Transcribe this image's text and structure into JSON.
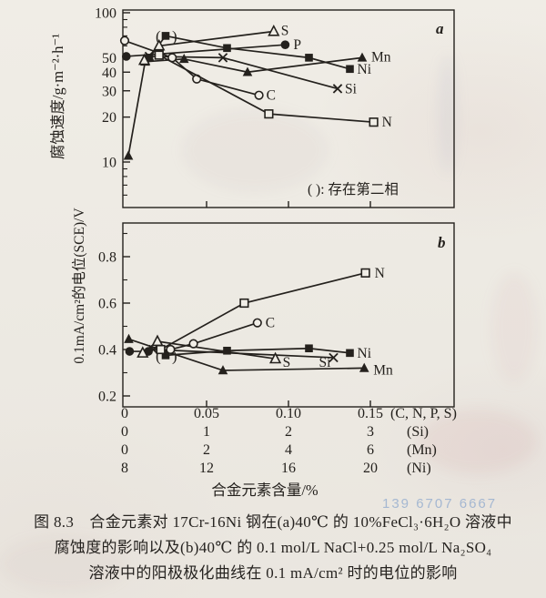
{
  "figure": {
    "caption_lines": [
      "图 8.3　合金元素对 17Cr-16Ni 钢在(a)40℃ 的 10%FeCl₃·6H₂O 溶液中",
      "腐蚀度的影响以及(b)40℃ 的 0.1 mol/L NaCl+0.25 mol/L Na₂SO₄",
      "溶液中的阳极极化曲线在 0.1 mA/cm² 时的电位的影响"
    ],
    "watermark": "139 6707 6667"
  },
  "colors": {
    "ink": "#24211d",
    "paper": "#f1eee7",
    "watermark_blue": "#6c92c6"
  },
  "x_axis": {
    "title": "合金元素含量/%",
    "ranges": {
      "CNPS": [
        0,
        0.2
      ],
      "Si": [
        0,
        4
      ],
      "Mn": [
        0,
        8
      ],
      "Ni": [
        8,
        24
      ]
    },
    "cnps_tick_values": [
      0.05,
      0.1,
      0.15
    ],
    "tick_rows": [
      {
        "axis": "CNPS",
        "labels": [
          "0",
          "0.05",
          "0.10",
          "0.15"
        ],
        "suffix": "(C, N, P, S)"
      },
      {
        "axis": "Si",
        "labels": [
          "0",
          "1",
          "2",
          "3"
        ],
        "suffix": "(Si)"
      },
      {
        "axis": "Mn",
        "labels": [
          "0",
          "2",
          "4",
          "6"
        ],
        "suffix": "(Mn)"
      },
      {
        "axis": "Ni",
        "labels": [
          "8",
          "12",
          "16",
          "20"
        ],
        "suffix": "(Ni)"
      }
    ]
  },
  "chart_data": [
    {
      "id": "a",
      "type": "line",
      "corner_label": "a",
      "ylabel": "腐蚀速度/g·m⁻²·h⁻¹",
      "yscale": "log",
      "ylim": [
        5,
        100
      ],
      "yticks": [
        100,
        50,
        40,
        30,
        20,
        10
      ],
      "yticks_minor": [
        90,
        80,
        70,
        60,
        9,
        8,
        7,
        6
      ],
      "note": "(  ): 存在第二相",
      "series": [
        {
          "name": "Mn",
          "label": "Mn",
          "marker": "triangle-filled",
          "xaxis": "Mn",
          "points": [
            [
              0.09,
              11
            ],
            [
              0.5,
              47
            ],
            [
              1.45,
              49
            ],
            [
              3.0,
              40
            ],
            [
              5.8,
              50
            ]
          ]
        },
        {
          "name": "Si",
          "label": "Si",
          "marker": "x",
          "xaxis": "Si",
          "points": [
            [
              0.3,
              51
            ],
            [
              1.2,
              50
            ],
            [
              2.6,
              31
            ]
          ]
        },
        {
          "name": "Ni",
          "label": "Ni",
          "marker": "square-filled",
          "xaxis": "Ni",
          "points": [
            [
              9.2,
              50
            ],
            [
              10,
              70
            ],
            [
              13,
              58
            ],
            [
              17,
              50
            ],
            [
              19,
              42
            ]
          ],
          "paren_index": 1
        },
        {
          "name": "P",
          "label": "P",
          "marker": "circle-filled",
          "xaxis": "CNPS",
          "points": [
            [
              0.001,
              51
            ],
            [
              0.098,
              61
            ]
          ]
        },
        {
          "name": "C",
          "label": "C",
          "marker": "circle-open",
          "xaxis": "CNPS",
          "points": [
            [
              0.0,
              65
            ],
            [
              0.029,
              50
            ],
            [
              0.044,
              36
            ],
            [
              0.082,
              28
            ]
          ]
        },
        {
          "name": "N",
          "label": "N",
          "marker": "square-open",
          "xaxis": "CNPS",
          "points": [
            [
              0.021,
              52
            ],
            [
              0.088,
              21
            ],
            [
              0.152,
              18.5
            ]
          ]
        },
        {
          "name": "S",
          "label": "S",
          "marker": "triangle-open",
          "xaxis": "CNPS",
          "points": [
            [
              0.012,
              48
            ],
            [
              0.021,
              60
            ],
            [
              0.091,
              75
            ]
          ]
        }
      ]
    },
    {
      "id": "b",
      "type": "line",
      "corner_label": "b",
      "ylabel": "0.1mA/cm²的电位(SCE)/V",
      "yscale": "linear",
      "ylim": [
        0.15,
        0.94
      ],
      "yticks": [
        0.8,
        0.6,
        0.4,
        0.2
      ],
      "yticks_minor": [
        0.9,
        0.7,
        0.5,
        0.3
      ],
      "note": "",
      "series": [
        {
          "name": "Mn",
          "label": "Mn",
          "marker": "triangle-filled",
          "xaxis": "Mn",
          "points": [
            [
              0.1,
              0.445
            ],
            [
              2.4,
              0.31
            ],
            [
              5.85,
              0.32
            ]
          ]
        },
        {
          "name": "Si",
          "label": "Si",
          "marker": "x",
          "xaxis": "Si",
          "points": [
            [
              0.35,
              0.4
            ],
            [
              2.55,
              0.365
            ]
          ]
        },
        {
          "name": "P",
          "label": "",
          "marker": "circle-filled",
          "xaxis": "CNPS",
          "points": [
            [
              0.003,
              0.392
            ],
            [
              0.0145,
              0.392
            ]
          ]
        },
        {
          "name": "Ni",
          "label": "Ni",
          "marker": "square-filled",
          "xaxis": "Ni",
          "points": [
            [
              10,
              0.375
            ],
            [
              13,
              0.395
            ],
            [
              17,
              0.405
            ],
            [
              19,
              0.385
            ]
          ],
          "paren_index": 0
        },
        {
          "name": "S",
          "label": "S",
          "marker": "triangle-open",
          "xaxis": "CNPS",
          "points": [
            [
              0.011,
              0.385
            ],
            [
              0.02,
              0.435
            ],
            [
              0.092,
              0.36
            ]
          ]
        },
        {
          "name": "C",
          "label": "C",
          "marker": "circle-open",
          "xaxis": "CNPS",
          "points": [
            [
              0.028,
              0.4
            ],
            [
              0.042,
              0.425
            ],
            [
              0.081,
              0.515
            ]
          ]
        },
        {
          "name": "N",
          "label": "N",
          "marker": "square-open",
          "xaxis": "CNPS",
          "points": [
            [
              0.022,
              0.4
            ],
            [
              0.073,
              0.6
            ],
            [
              0.147,
              0.73
            ]
          ]
        }
      ]
    }
  ]
}
